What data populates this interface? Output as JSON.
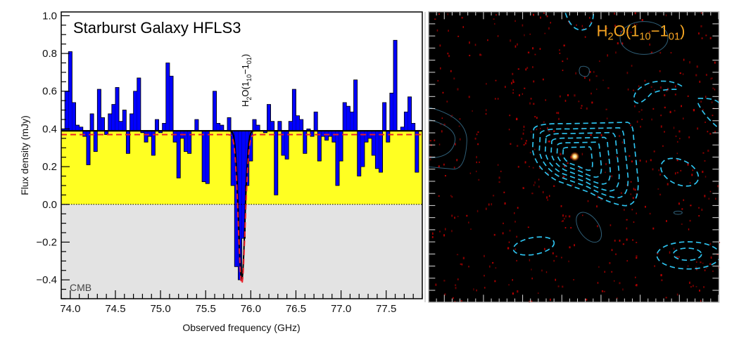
{
  "chart_data": [
    {
      "type": "bar",
      "title": "Starburst Galaxy HFLS3",
      "xlabel": "Observed frequency (GHz)",
      "ylabel": "Flux density (mJy)",
      "xlim": [
        73.9,
        77.9
      ],
      "ylim": [
        -0.5,
        1.02
      ],
      "xticks": [
        "74.0",
        "74.5",
        "75.0",
        "75.5",
        "76.0",
        "76.5",
        "77.0",
        "77.5"
      ],
      "yticks": [
        "1.0",
        "0.8",
        "0.6",
        "0.4",
        "0.2",
        "0.0",
        "−0.2",
        "−0.4"
      ],
      "line_label": {
        "base": "H",
        "sub1": "2",
        "mid": "O(1",
        "sub2": "10",
        "dash": "−1",
        "sub3": "01",
        "end": ")"
      },
      "region_label": "CMB",
      "continuum": 0.39,
      "channel_start": 73.9,
      "channel_width": 0.04,
      "values": [
        0.4,
        0.6,
        0.81,
        0.54,
        0.42,
        0.41,
        0.36,
        0.21,
        0.48,
        0.28,
        0.61,
        0.46,
        0.37,
        0.48,
        0.53,
        0.62,
        0.44,
        0.5,
        0.27,
        0.48,
        0.6,
        0.67,
        0.38,
        0.33,
        0.36,
        0.26,
        0.45,
        0.38,
        0.43,
        0.75,
        0.68,
        0.33,
        0.14,
        0.35,
        0.28,
        0.27,
        0.39,
        0.45,
        0.39,
        0.12,
        0.11,
        0.39,
        0.6,
        0.43,
        0.42,
        0.39,
        0.46,
        0.1,
        -0.33,
        -0.4,
        -0.18,
        0.1,
        0.23,
        0.45,
        0.42,
        0.39,
        0.38,
        0.53,
        0.44,
        0.05,
        0.44,
        0.26,
        0.24,
        0.44,
        0.61,
        0.47,
        0.45,
        0.27,
        0.4,
        0.36,
        0.49,
        0.23,
        0.36,
        0.34,
        0.36,
        0.33,
        0.1,
        0.23,
        0.54,
        0.52,
        0.49,
        0.66,
        0.15,
        0.2,
        0.33,
        0.35,
        0.26,
        0.19,
        0.17,
        0.54,
        0.33,
        0.59,
        0.87,
        0.39,
        0.41,
        0.49,
        0.57,
        0.43,
        0.17,
        0.39
      ],
      "model_fit": {
        "continuum": 0.39,
        "center": 75.9,
        "amplitude": 0.79,
        "sigma": 0.035
      },
      "model_fit_dashed": {
        "continuum": 0.37,
        "center": 75.9,
        "amplitude": 0.79,
        "sigma": 0.038
      },
      "colors": {
        "bars": "#0000ff",
        "cmb_fill": "#ffff22",
        "below_zero": "#e3e3e3",
        "fit": "#000000",
        "fit_dashed": "#e8202a"
      }
    },
    {
      "type": "image",
      "title": {
        "base": "H",
        "sub1": "2",
        "mid": "O(1",
        "sub2": "10",
        "dash": "−1",
        "sub3": "01",
        "end": ")"
      },
      "colors": {
        "title": "#f5a623",
        "negative_contours": "#2ec4f0",
        "positive_contours": "#2f5f78",
        "background": "#000000"
      }
    }
  ]
}
